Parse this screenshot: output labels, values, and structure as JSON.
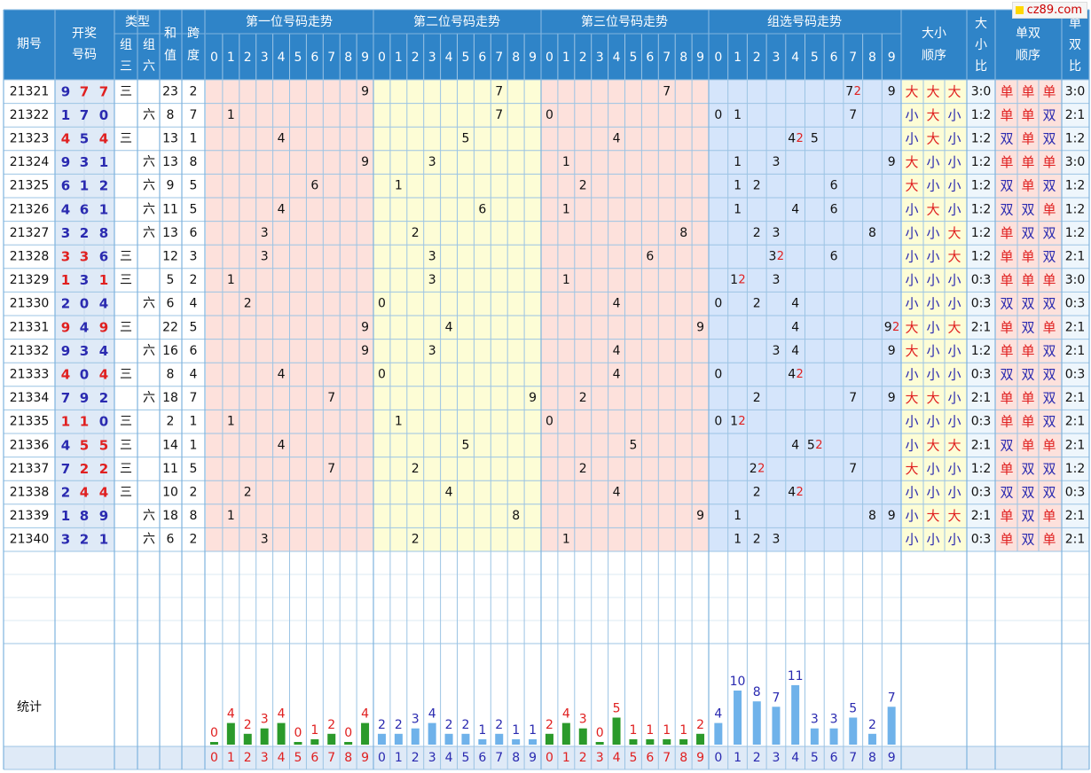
{
  "site": {
    "logo_text": "cz89.com"
  },
  "headers": {
    "issue": "期号",
    "draw": [
      "开奖",
      "号码"
    ],
    "type": "类型",
    "type_g3": [
      "组",
      "三"
    ],
    "type_g6": [
      "组",
      "六"
    ],
    "sum": [
      "和",
      "值"
    ],
    "span": [
      "跨",
      "度"
    ],
    "pos1": "第一位号码走势",
    "pos2": "第二位号码走势",
    "pos3": "第三位号码走势",
    "group": "组选号码走势",
    "bs_order": [
      "大小",
      "顺序"
    ],
    "bs_ratio": [
      "大",
      "小",
      "比"
    ],
    "oe_order": [
      "单双",
      "顺序"
    ],
    "oe_ratio": [
      "单",
      "双",
      "比"
    ],
    "stats": "统计"
  },
  "colors": {
    "header_bg": "#2f84c8",
    "pos1_bg": "#fde1dc",
    "pos2_bg": "#fdfdd6",
    "pos3_bg": "#fde1dc",
    "group_bg": "#d5e5fb",
    "blue_text": "#2a2ab0",
    "red_text": "#e02020",
    "grid_line": "#9cc4e4",
    "bar_green": "#2b9a2b",
    "bar_blue": "#6fb2ea"
  },
  "labels": {
    "group3": "三",
    "group6": "六",
    "big": "大",
    "small": "小",
    "odd": "单",
    "even": "双"
  },
  "rows": [
    {
      "issue": "21321",
      "num": [
        9,
        7,
        7
      ],
      "type": "三",
      "sum": 23,
      "span": 2,
      "bs": [
        "大",
        "大",
        "大"
      ],
      "bsr": "3:0",
      "oe": [
        "单",
        "单",
        "单"
      ],
      "oer": "3:0"
    },
    {
      "issue": "21322",
      "num": [
        1,
        7,
        0
      ],
      "type": "六",
      "sum": 8,
      "span": 7,
      "bs": [
        "小",
        "大",
        "小"
      ],
      "bsr": "1:2",
      "oe": [
        "单",
        "单",
        "双"
      ],
      "oer": "2:1"
    },
    {
      "issue": "21323",
      "num": [
        4,
        5,
        4
      ],
      "type": "三",
      "sum": 13,
      "span": 1,
      "bs": [
        "小",
        "大",
        "小"
      ],
      "bsr": "1:2",
      "oe": [
        "双",
        "单",
        "双"
      ],
      "oer": "1:2"
    },
    {
      "issue": "21324",
      "num": [
        9,
        3,
        1
      ],
      "type": "六",
      "sum": 13,
      "span": 8,
      "bs": [
        "大",
        "小",
        "小"
      ],
      "bsr": "1:2",
      "oe": [
        "单",
        "单",
        "单"
      ],
      "oer": "3:0"
    },
    {
      "issue": "21325",
      "num": [
        6,
        1,
        2
      ],
      "type": "六",
      "sum": 9,
      "span": 5,
      "bs": [
        "大",
        "小",
        "小"
      ],
      "bsr": "1:2",
      "oe": [
        "双",
        "单",
        "双"
      ],
      "oer": "1:2"
    },
    {
      "issue": "21326",
      "num": [
        4,
        6,
        1
      ],
      "type": "六",
      "sum": 11,
      "span": 5,
      "bs": [
        "小",
        "大",
        "小"
      ],
      "bsr": "1:2",
      "oe": [
        "双",
        "双",
        "单"
      ],
      "oer": "1:2"
    },
    {
      "issue": "21327",
      "num": [
        3,
        2,
        8
      ],
      "type": "六",
      "sum": 13,
      "span": 6,
      "bs": [
        "小",
        "小",
        "大"
      ],
      "bsr": "1:2",
      "oe": [
        "单",
        "双",
        "双"
      ],
      "oer": "1:2"
    },
    {
      "issue": "21328",
      "num": [
        3,
        3,
        6
      ],
      "type": "三",
      "sum": 12,
      "span": 3,
      "bs": [
        "小",
        "小",
        "大"
      ],
      "bsr": "1:2",
      "oe": [
        "单",
        "单",
        "双"
      ],
      "oer": "2:1"
    },
    {
      "issue": "21329",
      "num": [
        1,
        3,
        1
      ],
      "type": "三",
      "sum": 5,
      "span": 2,
      "bs": [
        "小",
        "小",
        "小"
      ],
      "bsr": "0:3",
      "oe": [
        "单",
        "单",
        "单"
      ],
      "oer": "3:0"
    },
    {
      "issue": "21330",
      "num": [
        2,
        0,
        4
      ],
      "type": "六",
      "sum": 6,
      "span": 4,
      "bs": [
        "小",
        "小",
        "小"
      ],
      "bsr": "0:3",
      "oe": [
        "双",
        "双",
        "双"
      ],
      "oer": "0:3"
    },
    {
      "issue": "21331",
      "num": [
        9,
        4,
        9
      ],
      "type": "三",
      "sum": 22,
      "span": 5,
      "bs": [
        "大",
        "小",
        "大"
      ],
      "bsr": "2:1",
      "oe": [
        "单",
        "双",
        "单"
      ],
      "oer": "2:1"
    },
    {
      "issue": "21332",
      "num": [
        9,
        3,
        4
      ],
      "type": "六",
      "sum": 16,
      "span": 6,
      "bs": [
        "大",
        "小",
        "小"
      ],
      "bsr": "1:2",
      "oe": [
        "单",
        "单",
        "双"
      ],
      "oer": "2:1"
    },
    {
      "issue": "21333",
      "num": [
        4,
        0,
        4
      ],
      "type": "三",
      "sum": 8,
      "span": 4,
      "bs": [
        "小",
        "小",
        "小"
      ],
      "bsr": "0:3",
      "oe": [
        "双",
        "双",
        "双"
      ],
      "oer": "0:3"
    },
    {
      "issue": "21334",
      "num": [
        7,
        9,
        2
      ],
      "type": "六",
      "sum": 18,
      "span": 7,
      "bs": [
        "大",
        "大",
        "小"
      ],
      "bsr": "2:1",
      "oe": [
        "单",
        "单",
        "双"
      ],
      "oer": "2:1"
    },
    {
      "issue": "21335",
      "num": [
        1,
        1,
        0
      ],
      "type": "三",
      "sum": 2,
      "span": 1,
      "bs": [
        "小",
        "小",
        "小"
      ],
      "bsr": "0:3",
      "oe": [
        "单",
        "单",
        "双"
      ],
      "oer": "2:1"
    },
    {
      "issue": "21336",
      "num": [
        4,
        5,
        5
      ],
      "type": "三",
      "sum": 14,
      "span": 1,
      "bs": [
        "小",
        "大",
        "大"
      ],
      "bsr": "2:1",
      "oe": [
        "双",
        "单",
        "单"
      ],
      "oer": "2:1"
    },
    {
      "issue": "21337",
      "num": [
        7,
        2,
        2
      ],
      "type": "三",
      "sum": 11,
      "span": 5,
      "bs": [
        "大",
        "小",
        "小"
      ],
      "bsr": "1:2",
      "oe": [
        "单",
        "双",
        "双"
      ],
      "oer": "1:2"
    },
    {
      "issue": "21338",
      "num": [
        2,
        4,
        4
      ],
      "type": "三",
      "sum": 10,
      "span": 2,
      "bs": [
        "小",
        "小",
        "小"
      ],
      "bsr": "0:3",
      "oe": [
        "双",
        "双",
        "双"
      ],
      "oer": "0:3"
    },
    {
      "issue": "21339",
      "num": [
        1,
        8,
        9
      ],
      "type": "六",
      "sum": 18,
      "span": 8,
      "bs": [
        "小",
        "大",
        "大"
      ],
      "bsr": "2:1",
      "oe": [
        "单",
        "双",
        "单"
      ],
      "oer": "2:1"
    },
    {
      "issue": "21340",
      "num": [
        3,
        2,
        1
      ],
      "type": "六",
      "sum": 6,
      "span": 2,
      "bs": [
        "小",
        "小",
        "小"
      ],
      "bsr": "0:3",
      "oe": [
        "单",
        "双",
        "单"
      ],
      "oer": "2:1"
    }
  ],
  "stats": {
    "pos1": [
      0,
      4,
      2,
      3,
      4,
      0,
      1,
      2,
      0,
      4
    ],
    "pos2": [
      2,
      2,
      3,
      4,
      2,
      2,
      1,
      2,
      1,
      1
    ],
    "pos3": [
      2,
      4,
      3,
      0,
      5,
      1,
      1,
      1,
      1,
      2
    ],
    "group": [
      4,
      10,
      8,
      7,
      11,
      3,
      3,
      5,
      2,
      7
    ]
  },
  "digits": [
    0,
    1,
    2,
    3,
    4,
    5,
    6,
    7,
    8,
    9
  ]
}
